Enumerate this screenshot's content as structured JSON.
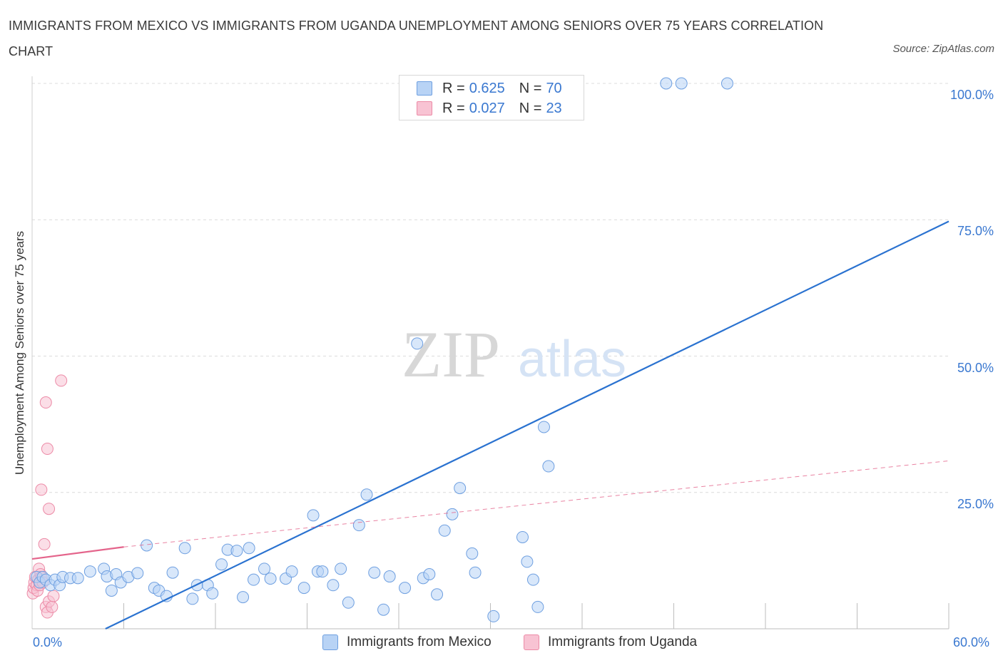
{
  "title": "IMMIGRANTS FROM MEXICO VS IMMIGRANTS FROM UGANDA UNEMPLOYMENT AMONG SENIORS OVER 75 YEARS CORRELATION CHART",
  "source": "Source: ZipAtlas.com",
  "watermark": {
    "zip": "ZIP",
    "atlas": "atlas"
  },
  "legend": {
    "r_label": "R =",
    "n_label": "N =",
    "mexico": {
      "r": "0.625",
      "n": "70"
    },
    "uganda": {
      "r": "0.027",
      "n": "23"
    }
  },
  "colors": {
    "mexico_fill": "#b8d3f5",
    "mexico_stroke": "#6e9fe0",
    "mexico_line": "#2a72d0",
    "uganda_fill": "#f8c3d3",
    "uganda_stroke": "#ec8aa6",
    "uganda_line": "#e4648b",
    "tick_text": "#3a78d0",
    "grid": "#dcdcdc"
  },
  "chart_data": {
    "type": "scatter",
    "title": "IMMIGRANTS FROM MEXICO VS IMMIGRANTS FROM UGANDA UNEMPLOYMENT AMONG SENIORS OVER 75 YEARS CORRELATION CHART",
    "xlabel": "",
    "ylabel": "Unemployment Among Seniors over 75 years",
    "xlim": [
      0,
      60
    ],
    "ylim": [
      0,
      100
    ],
    "x_ticks": [
      "0.0%",
      "60.0%"
    ],
    "y_ticks": [
      {
        "value": 25,
        "label": "25.0%"
      },
      {
        "value": 50,
        "label": "50.0%"
      },
      {
        "value": 75,
        "label": "75.0%"
      },
      {
        "value": 100,
        "label": "100.0%"
      }
    ],
    "series": [
      {
        "name": "Immigrants from Mexico",
        "r": 0.625,
        "n": 70,
        "trend": {
          "x": [
            0,
            60
          ],
          "y": [
            -6.5,
            74.7
          ],
          "dashed": false
        },
        "points": [
          [
            0.3,
            9.5
          ],
          [
            0.5,
            8.5
          ],
          [
            0.7,
            9.5
          ],
          [
            0.9,
            9.0
          ],
          [
            1.2,
            8.0
          ],
          [
            1.5,
            9.0
          ],
          [
            1.8,
            8.0
          ],
          [
            2.0,
            9.5
          ],
          [
            2.5,
            9.3
          ],
          [
            3.0,
            9.3
          ],
          [
            3.8,
            10.5
          ],
          [
            4.7,
            11.0
          ],
          [
            4.9,
            9.6
          ],
          [
            5.5,
            10.0
          ],
          [
            5.2,
            7.0
          ],
          [
            5.8,
            8.5
          ],
          [
            6.3,
            9.5
          ],
          [
            6.9,
            10.2
          ],
          [
            7.5,
            15.3
          ],
          [
            8.0,
            7.5
          ],
          [
            8.3,
            7.0
          ],
          [
            8.8,
            6.0
          ],
          [
            9.2,
            10.3
          ],
          [
            10.0,
            14.8
          ],
          [
            10.5,
            5.5
          ],
          [
            10.8,
            8.0
          ],
          [
            11.5,
            8.0
          ],
          [
            11.8,
            6.5
          ],
          [
            12.4,
            11.8
          ],
          [
            12.8,
            14.5
          ],
          [
            13.4,
            14.3
          ],
          [
            13.8,
            5.8
          ],
          [
            14.2,
            14.8
          ],
          [
            14.5,
            9.0
          ],
          [
            15.2,
            11.0
          ],
          [
            15.6,
            9.2
          ],
          [
            16.6,
            9.2
          ],
          [
            17.0,
            10.5
          ],
          [
            17.8,
            7.5
          ],
          [
            18.4,
            20.8
          ],
          [
            18.7,
            10.5
          ],
          [
            19.0,
            10.5
          ],
          [
            19.7,
            8.0
          ],
          [
            20.2,
            11.0
          ],
          [
            20.7,
            4.8
          ],
          [
            21.4,
            19.0
          ],
          [
            21.9,
            24.6
          ],
          [
            22.4,
            10.3
          ],
          [
            23.0,
            3.5
          ],
          [
            23.4,
            9.6
          ],
          [
            24.4,
            7.5
          ],
          [
            25.2,
            52.3
          ],
          [
            25.6,
            9.3
          ],
          [
            26.0,
            10.0
          ],
          [
            26.5,
            6.3
          ],
          [
            27.0,
            18.0
          ],
          [
            27.5,
            21.0
          ],
          [
            28.0,
            25.8
          ],
          [
            28.8,
            13.8
          ],
          [
            29.0,
            10.3
          ],
          [
            30.2,
            2.3
          ],
          [
            32.1,
            16.8
          ],
          [
            32.4,
            12.3
          ],
          [
            32.8,
            9.0
          ],
          [
            33.1,
            4.0
          ],
          [
            33.5,
            37.0
          ],
          [
            33.8,
            29.8
          ],
          [
            41.5,
            100.0
          ],
          [
            42.5,
            100.0
          ],
          [
            45.5,
            100.0
          ]
        ]
      },
      {
        "name": "Immigrants from Uganda",
        "r": 0.027,
        "n": 23,
        "trend": {
          "x": [
            0,
            6
          ],
          "y": [
            12.8,
            15.0
          ],
          "dashed": false
        },
        "trend_extended": {
          "x": [
            6,
            60
          ],
          "y": [
            15.0,
            30.8
          ],
          "dashed": true
        },
        "points": [
          [
            0.05,
            6.5
          ],
          [
            0.1,
            7.5
          ],
          [
            0.15,
            8.5
          ],
          [
            0.2,
            9.5
          ],
          [
            0.3,
            8.0
          ],
          [
            0.35,
            7.0
          ],
          [
            0.4,
            9.0
          ],
          [
            0.45,
            11.0
          ],
          [
            0.5,
            8.0
          ],
          [
            0.55,
            10.0
          ],
          [
            0.6,
            9.5
          ],
          [
            0.7,
            8.5
          ],
          [
            0.8,
            15.5
          ],
          [
            0.9,
            4.0
          ],
          [
            1.0,
            3.0
          ],
          [
            1.1,
            5.0
          ],
          [
            1.3,
            4.0
          ],
          [
            1.4,
            6.0
          ],
          [
            0.9,
            41.5
          ],
          [
            1.0,
            33.0
          ],
          [
            1.1,
            22.0
          ],
          [
            0.6,
            25.5
          ],
          [
            1.9,
            45.5
          ]
        ]
      }
    ]
  },
  "bottom_legend": {
    "mexico": "Immigrants from Mexico",
    "uganda": "Immigrants from Uganda"
  }
}
